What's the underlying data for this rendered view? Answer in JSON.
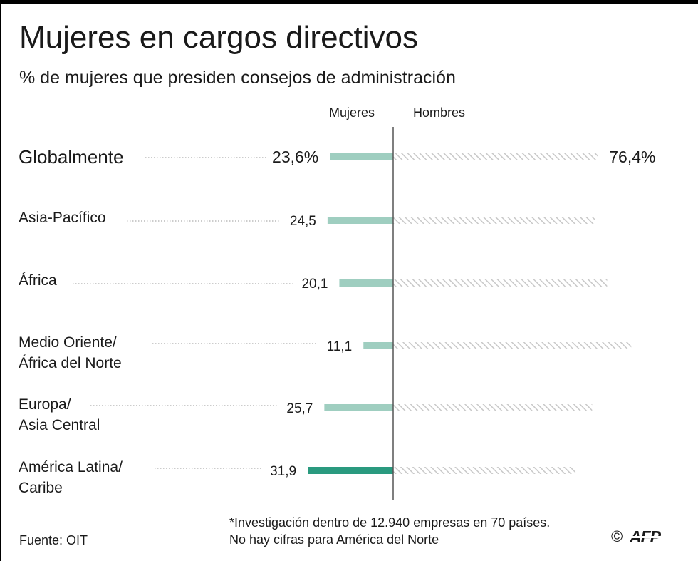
{
  "title": "Mujeres en cargos directivos",
  "subtitle": "% de mujeres que presiden consejos de administración",
  "colors": {
    "women_bar": "#9fcec0",
    "women_bar_highlight": "#2a9a7f",
    "men_hatch": "#c8c8c8",
    "axis": "#555555",
    "leader": "#9a9a9a"
  },
  "chart_data": {
    "type": "bar",
    "orientation": "horizontal-diverging",
    "series": [
      {
        "name": "Mujeres",
        "values": [
          23.6,
          24.5,
          20.1,
          11.1,
          25.7,
          31.9
        ]
      },
      {
        "name": "Hombres",
        "values": [
          76.4,
          75.5,
          79.9,
          88.9,
          74.3,
          68.1
        ]
      }
    ],
    "categories": [
      [
        "Globalmente"
      ],
      [
        "Asia-Pacífico"
      ],
      [
        "África"
      ],
      [
        "Medio Oriente/",
        "África del Norte"
      ],
      [
        "Europa/",
        "Asia Central"
      ],
      [
        "América Latina/",
        "Caribe"
      ]
    ],
    "value_labels": [
      "23,6%",
      "24,5",
      "20,1",
      "11,1",
      "25,7",
      "31,9"
    ],
    "men_labels": [
      "76,4%",
      "",
      "",
      "",
      "",
      ""
    ],
    "highlight_index": 5,
    "legend": [
      "Mujeres",
      "Hombres"
    ],
    "legend_placement": "top-center"
  },
  "note": [
    "*Investigación dentro de 12.940 empresas en 70 países.",
    "No hay cifras para América del Norte"
  ],
  "source": "Fuente: OIT",
  "credit": {
    "copyright": "©",
    "agency": "AFP"
  }
}
